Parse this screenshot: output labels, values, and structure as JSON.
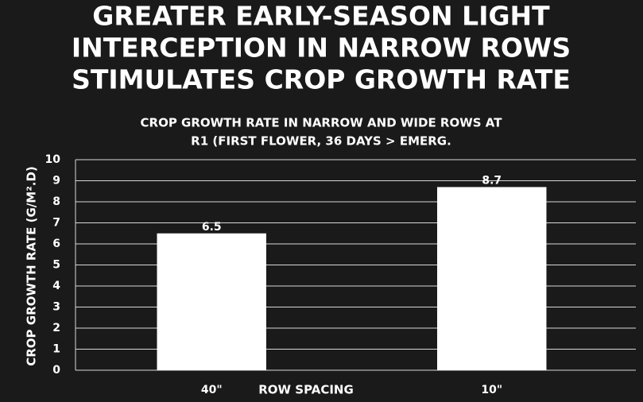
{
  "chart_data": {
    "type": "bar",
    "title": [
      "GREATER EARLY-SEASON LIGHT",
      "INTERCEPTION IN NARROW ROWS",
      "STIMULATES CROP GROWTH RATE"
    ],
    "subtitle": [
      "CROP GROWTH RATE IN NARROW AND WIDE ROWS AT",
      "R1 (FIRST FLOWER, 36 DAYS > EMERG."
    ],
    "x_label": "ROW SPACING",
    "y_label": "CROP GROWTH RATE (G/M².D)",
    "categories": [
      "40\"",
      "10\""
    ],
    "values": [
      6.5,
      8.7
    ],
    "color": "#ffffff",
    "ylim": [
      0,
      10
    ],
    "yticks": [
      0,
      1,
      2,
      3,
      4,
      5,
      6,
      7,
      8,
      9,
      10
    ],
    "grid": true
  }
}
